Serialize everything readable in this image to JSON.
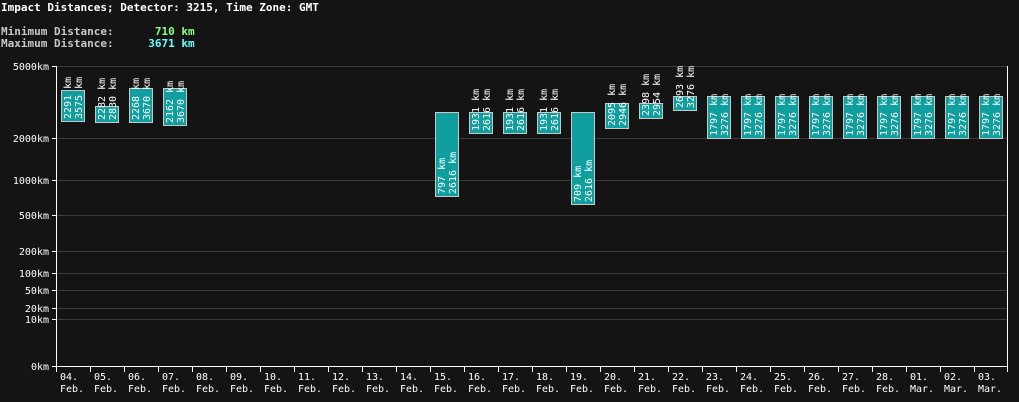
{
  "header": {
    "title": "Impact Distances; Detector: 3215, Time Zone: GMT",
    "min_label": "Minimum Distance:",
    "min_value": "710 km",
    "max_label": "Maximum Distance:",
    "max_value": "3671 km",
    "min_color": "#88ff88",
    "max_color": "#66ffff"
  },
  "colors": {
    "background": "#141414",
    "bar_fill": "#119e9e",
    "bar_stroke": "#c8c8c8",
    "grid": "#3c3c3c",
    "axis": "#ffffff"
  },
  "chart_data": {
    "type": "bar",
    "subtype": "floating-range",
    "title": "Impact Distances; Detector: 3215, Time Zone: GMT",
    "xlabel": "",
    "ylabel": "",
    "yscale": "log (with 0km baseline)",
    "y_ticks": [
      "5000km",
      "2000km",
      "1000km",
      "500km",
      "200km",
      "100km",
      "50km",
      "20km",
      "10km",
      "0km"
    ],
    "legend": [],
    "grid": true,
    "categories": [
      "04. Feb.",
      "05. Feb.",
      "06. Feb.",
      "07. Feb.",
      "08. Feb.",
      "09. Feb.",
      "10. Feb.",
      "11. Feb.",
      "12. Feb.",
      "13. Feb.",
      "14. Feb.",
      "15. Feb.",
      "16. Feb.",
      "17. Feb.",
      "18. Feb.",
      "19. Feb.",
      "20. Feb.",
      "21. Feb.",
      "22. Feb.",
      "23. Feb.",
      "24. Feb.",
      "25. Feb.",
      "26. Feb.",
      "27. Feb.",
      "28. Feb.",
      "01. Mar.",
      "02. Mar.",
      "03. Mar."
    ],
    "series": [
      {
        "name": "min",
        "values": [
          2291,
          2282,
          2268,
          2162,
          null,
          null,
          null,
          null,
          null,
          null,
          null,
          797,
          1931,
          1931,
          1931,
          709,
          2095,
          2398,
          2693,
          1797,
          1797,
          1797,
          1797,
          1797,
          1797,
          1797,
          1797,
          1797
        ]
      },
      {
        "name": "max",
        "values": [
          3575,
          2830,
          3670,
          3670,
          null,
          null,
          null,
          null,
          null,
          null,
          null,
          2616,
          2616,
          2616,
          2616,
          2616,
          2946,
          2954,
          3276,
          3276,
          3276,
          3276,
          3276,
          3276,
          3276,
          3276,
          3276,
          3276
        ]
      }
    ],
    "summary": {
      "minimum_distance_km": 710,
      "maximum_distance_km": 3671
    }
  }
}
